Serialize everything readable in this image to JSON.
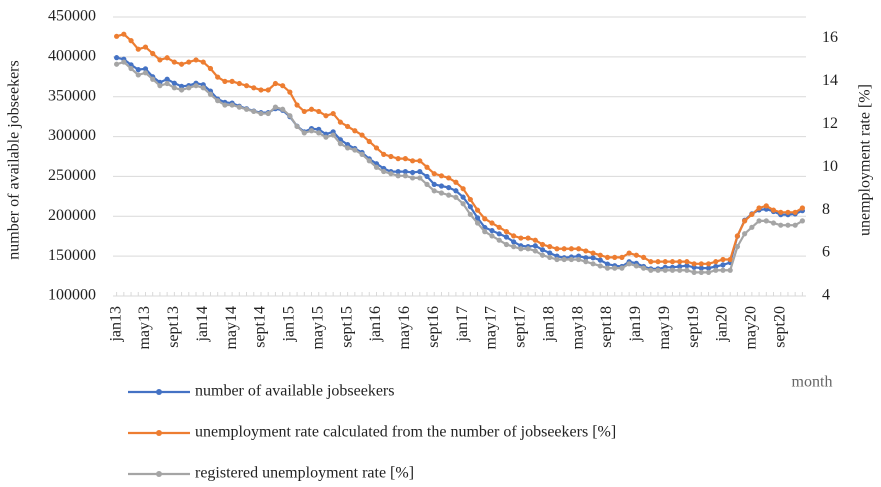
{
  "chart_data": {
    "type": "line",
    "ylabel": "number of available jobseekers",
    "y2label": "unemployment rate [%]",
    "xlabel": "month",
    "categories": [
      "jan13",
      null,
      null,
      null,
      "may13",
      null,
      null,
      null,
      "sept13",
      null,
      null,
      null,
      "jan14",
      null,
      null,
      null,
      "may14",
      null,
      null,
      null,
      "sept14",
      null,
      null,
      null,
      "jan15",
      null,
      null,
      null,
      "may15",
      null,
      null,
      null,
      "sept15",
      null,
      null,
      null,
      "jan16",
      null,
      null,
      null,
      "may16",
      null,
      null,
      null,
      "sept16",
      null,
      null,
      null,
      "jan17",
      null,
      null,
      null,
      "may17",
      null,
      null,
      null,
      "sept17",
      null,
      null,
      null,
      "jan18",
      null,
      null,
      null,
      "may18",
      null,
      null,
      null,
      "sept18",
      null,
      null,
      null,
      "jan19",
      null,
      null,
      null,
      "may19",
      null,
      null,
      null,
      "sept19",
      null,
      null,
      null,
      "jan20",
      null,
      null,
      null,
      "may20",
      null,
      null,
      null,
      "sept20",
      null,
      null,
      null
    ],
    "series": [
      {
        "name": "number of available jobseekers",
        "color": "#4472c4",
        "values": [
          399000,
          397000,
          390000,
          384000,
          385000,
          375000,
          368000,
          372000,
          367000,
          363000,
          364000,
          367000,
          365000,
          357000,
          347000,
          343000,
          342000,
          338000,
          335000,
          332000,
          330000,
          330000,
          335000,
          333000,
          325000,
          313000,
          306000,
          310000,
          309000,
          303000,
          306000,
          296000,
          290000,
          285000,
          280000,
          272000,
          266000,
          260000,
          256000,
          256000,
          256000,
          255000,
          256000,
          250000,
          240000,
          238000,
          236000,
          232000,
          224000,
          212000,
          198000,
          186000,
          182000,
          178000,
          174000,
          168000,
          163000,
          162000,
          163000,
          158000,
          154000,
          150000,
          148000,
          149000,
          150000,
          148000,
          148000,
          145000,
          140000,
          138000,
          137000,
          143000,
          141000,
          137000,
          134000,
          134000,
          136000,
          136000,
          137000,
          138000,
          136000,
          135000,
          135000,
          137000,
          139000,
          142000,
          175000,
          195000,
          203000,
          208000,
          209000,
          206000,
          202000,
          202000,
          203000,
          207000
        ]
      },
      {
        "name": "unemployment rate calculated from the number of jobseekers [%]",
        "color": "#ed7d31",
        "axis": "y2",
        "values": [
          16.1,
          16.2,
          15.9,
          15.5,
          15.6,
          15.3,
          15.0,
          15.1,
          14.9,
          14.8,
          14.9,
          15.0,
          14.9,
          14.6,
          14.2,
          14.0,
          14.0,
          13.9,
          13.8,
          13.7,
          13.6,
          13.6,
          13.9,
          13.8,
          13.5,
          12.9,
          12.6,
          12.7,
          12.6,
          12.4,
          12.5,
          12.1,
          11.9,
          11.7,
          11.5,
          11.2,
          10.9,
          10.6,
          10.5,
          10.4,
          10.4,
          10.3,
          10.3,
          10.0,
          9.7,
          9.6,
          9.5,
          9.3,
          9.0,
          8.5,
          8.0,
          7.6,
          7.4,
          7.2,
          7.0,
          6.8,
          6.7,
          6.7,
          6.6,
          6.4,
          6.3,
          6.2,
          6.2,
          6.2,
          6.2,
          6.1,
          6.0,
          5.9,
          5.8,
          5.8,
          5.8,
          6.0,
          5.9,
          5.8,
          5.6,
          5.6,
          5.6,
          5.6,
          5.6,
          5.6,
          5.5,
          5.5,
          5.5,
          5.6,
          5.7,
          5.7,
          6.8,
          7.5,
          7.8,
          8.1,
          8.2,
          8.0,
          7.9,
          7.9,
          7.9,
          8.1
        ]
      },
      {
        "name": "registered unemployment rate [%]",
        "color": "#a5a5a5",
        "axis": "y2",
        "values": [
          14.8,
          14.9,
          14.6,
          14.3,
          14.4,
          14.1,
          13.8,
          13.9,
          13.7,
          13.6,
          13.7,
          13.8,
          13.7,
          13.4,
          13.1,
          12.9,
          12.9,
          12.8,
          12.7,
          12.6,
          12.5,
          12.5,
          12.8,
          12.7,
          12.4,
          11.9,
          11.6,
          11.7,
          11.6,
          11.4,
          11.5,
          11.1,
          10.9,
          10.8,
          10.6,
          10.3,
          10.0,
          9.8,
          9.7,
          9.6,
          9.6,
          9.5,
          9.5,
          9.2,
          8.9,
          8.8,
          8.7,
          8.6,
          8.3,
          7.8,
          7.4,
          7.0,
          6.8,
          6.6,
          6.4,
          6.3,
          6.2,
          6.2,
          6.1,
          5.9,
          5.8,
          5.7,
          5.7,
          5.7,
          5.7,
          5.6,
          5.5,
          5.4,
          5.3,
          5.3,
          5.3,
          5.5,
          5.4,
          5.3,
          5.2,
          5.2,
          5.2,
          5.2,
          5.2,
          5.2,
          5.1,
          5.1,
          5.1,
          5.2,
          5.2,
          5.2,
          6.3,
          6.9,
          7.2,
          7.5,
          7.5,
          7.4,
          7.3,
          7.3,
          7.3,
          7.5
        ]
      }
    ],
    "ylim": [
      100000,
      450000
    ],
    "yticks": [
      100000,
      150000,
      200000,
      250000,
      300000,
      350000,
      400000,
      450000
    ],
    "y2lim": [
      4,
      17
    ],
    "y2ticks": [
      4,
      6,
      8,
      10,
      12,
      14,
      16
    ],
    "grid": true
  }
}
